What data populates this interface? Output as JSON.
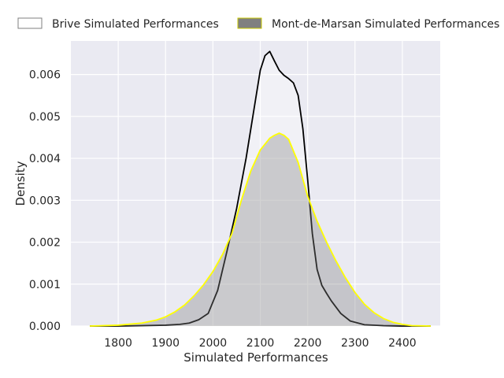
{
  "chart_data": {
    "type": "area",
    "title": "",
    "xlabel": "Simulated Performances",
    "ylabel": "Density",
    "xlim": [
      1700,
      2480
    ],
    "ylim": [
      0,
      0.0068
    ],
    "xticks": [
      "1800",
      "1900",
      "2000",
      "2100",
      "2200",
      "2300",
      "2400"
    ],
    "yticks": [
      "0.000",
      "0.001",
      "0.002",
      "0.003",
      "0.004",
      "0.005",
      "0.006"
    ],
    "grid": true,
    "legend_position": "top",
    "colors": {
      "plot_background": "#eaeaf2",
      "grid": "#ffffff",
      "brive_line": "#000000",
      "brive_fill": "#ffffff",
      "mdm_line": "#ffff00",
      "mdm_fill": "#808080"
    },
    "series": [
      {
        "name": "Brive Simulated Performances",
        "x": [
          1740,
          1800,
          1850,
          1900,
          1930,
          1950,
          1970,
          1990,
          2010,
          2030,
          2050,
          2070,
          2090,
          2100,
          2110,
          2120,
          2130,
          2140,
          2150,
          2160,
          2170,
          2180,
          2190,
          2200,
          2210,
          2220,
          2230,
          2240,
          2250,
          2270,
          2290,
          2320,
          2360,
          2400,
          2460
        ],
        "values": [
          0,
          0,
          1e-05,
          2e-05,
          4e-05,
          7e-05,
          0.00015,
          0.0003,
          0.00085,
          0.0018,
          0.0028,
          0.004,
          0.0054,
          0.0061,
          0.00645,
          0.00655,
          0.00632,
          0.0061,
          0.00598,
          0.0059,
          0.0058,
          0.0055,
          0.0047,
          0.0035,
          0.0022,
          0.00135,
          0.00097,
          0.00078,
          0.0006,
          0.0003,
          0.00012,
          3e-05,
          1e-05,
          0,
          0
        ]
      },
      {
        "name": "Mont-de-Marsan Simulated Performances",
        "x": [
          1740,
          1800,
          1850,
          1880,
          1900,
          1920,
          1940,
          1960,
          1980,
          2000,
          2020,
          2040,
          2060,
          2080,
          2100,
          2120,
          2130,
          2140,
          2150,
          2160,
          2180,
          2200,
          2220,
          2240,
          2260,
          2280,
          2300,
          2320,
          2340,
          2360,
          2380,
          2400,
          2420,
          2460
        ],
        "values": [
          0,
          2e-05,
          7e-05,
          0.00014,
          0.00022,
          0.00034,
          0.0005,
          0.00072,
          0.00098,
          0.0013,
          0.0017,
          0.0022,
          0.003,
          0.0037,
          0.0042,
          0.00448,
          0.00455,
          0.0046,
          0.00455,
          0.00445,
          0.0039,
          0.0031,
          0.0025,
          0.002,
          0.00155,
          0.00115,
          0.0008,
          0.00052,
          0.00032,
          0.00018,
          9e-05,
          4e-05,
          1e-05,
          0
        ]
      }
    ]
  }
}
